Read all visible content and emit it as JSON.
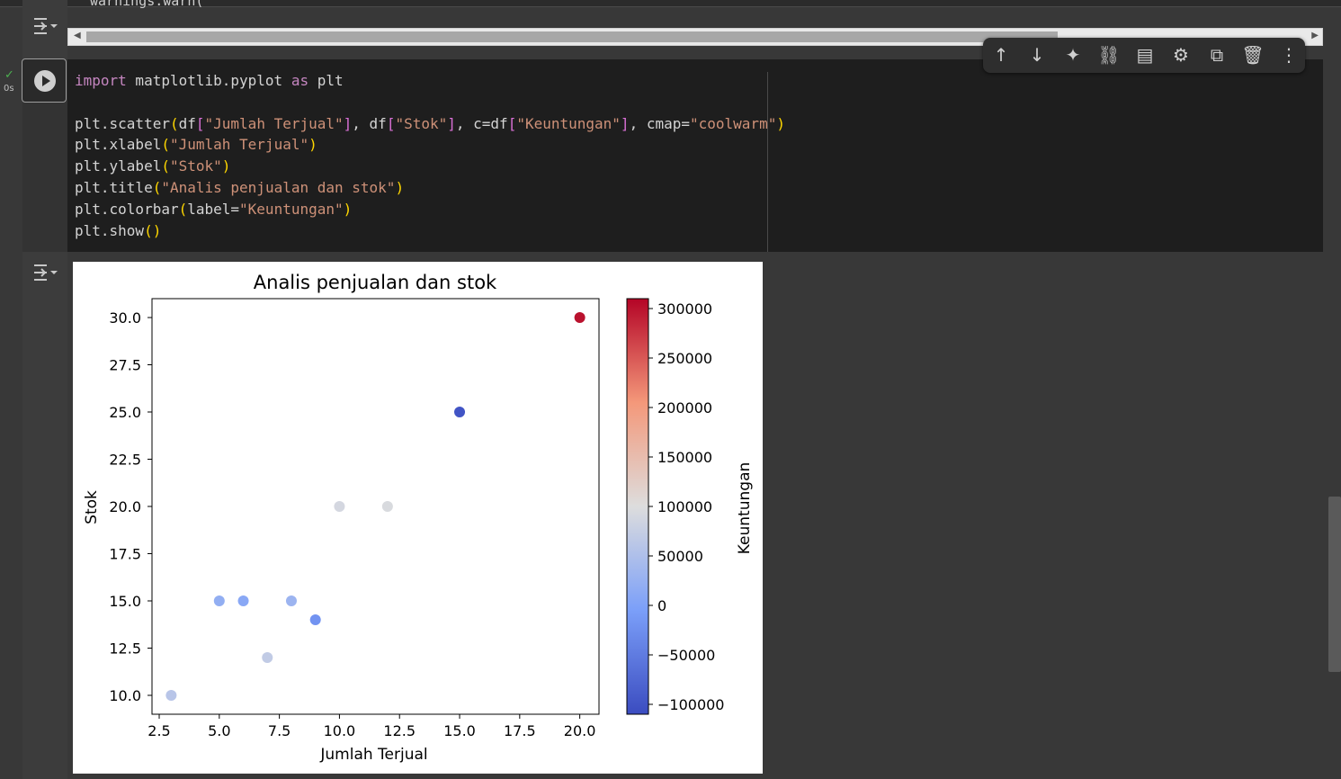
{
  "top": {
    "warning_text": "warnings.warn("
  },
  "cell": {
    "exec_time": "0s",
    "code_lines": [
      [
        {
          "t": "import",
          "c": "kw"
        },
        {
          "t": " matplotlib.pyplot "
        },
        {
          "t": "as",
          "c": "kw"
        },
        {
          "t": " plt"
        }
      ],
      [],
      [
        {
          "t": "plt.scatter"
        },
        {
          "t": "(",
          "c": "par"
        },
        {
          "t": "df"
        },
        {
          "t": "[",
          "c": "brk"
        },
        {
          "t": "\"Jumlah Terjual\"",
          "c": "str"
        },
        {
          "t": "]",
          "c": "brk"
        },
        {
          "t": ", df"
        },
        {
          "t": "[",
          "c": "brk"
        },
        {
          "t": "\"Stok\"",
          "c": "str"
        },
        {
          "t": "]",
          "c": "brk"
        },
        {
          "t": ", c=df"
        },
        {
          "t": "[",
          "c": "brk"
        },
        {
          "t": "\"Keuntungan\"",
          "c": "str"
        },
        {
          "t": "]",
          "c": "brk"
        },
        {
          "t": ", cmap="
        },
        {
          "t": "\"coolwarm\"",
          "c": "str"
        },
        {
          "t": ")",
          "c": "par"
        }
      ],
      [
        {
          "t": "plt.xlabel"
        },
        {
          "t": "(",
          "c": "par"
        },
        {
          "t": "\"Jumlah Terjual\"",
          "c": "str"
        },
        {
          "t": ")",
          "c": "par"
        }
      ],
      [
        {
          "t": "plt.ylabel"
        },
        {
          "t": "(",
          "c": "par"
        },
        {
          "t": "\"Stok\"",
          "c": "str"
        },
        {
          "t": ")",
          "c": "par"
        }
      ],
      [
        {
          "t": "plt.title"
        },
        {
          "t": "(",
          "c": "par"
        },
        {
          "t": "\"Analis penjualan dan stok\"",
          "c": "str"
        },
        {
          "t": ")",
          "c": "par"
        }
      ],
      [
        {
          "t": "plt.colorbar"
        },
        {
          "t": "(",
          "c": "par"
        },
        {
          "t": "label="
        },
        {
          "t": "\"Keuntungan\"",
          "c": "str"
        },
        {
          "t": ")",
          "c": "par"
        }
      ],
      [
        {
          "t": "plt.show"
        },
        {
          "t": "()",
          "c": "par"
        }
      ]
    ]
  },
  "toolbar": {
    "buttons": [
      {
        "name": "move-up-icon",
        "glyph": "↑"
      },
      {
        "name": "move-down-icon",
        "glyph": "↓"
      },
      {
        "name": "sparkle-icon",
        "glyph": "✦"
      },
      {
        "name": "link-icon",
        "glyph": "⛓"
      },
      {
        "name": "comment-icon",
        "glyph": "▤"
      },
      {
        "name": "gear-icon",
        "glyph": "⚙"
      },
      {
        "name": "mirror-cell-icon",
        "glyph": "⧉"
      },
      {
        "name": "trash-icon",
        "glyph": "🗑"
      },
      {
        "name": "more-vert-icon",
        "glyph": "⋮"
      }
    ]
  },
  "chart_data": {
    "type": "scatter",
    "title": "Analis penjualan dan stok",
    "xlabel": "Jumlah Terjual",
    "ylabel": "Stok",
    "colorbar_label": "Keuntungan",
    "cmap": "coolwarm",
    "xlim": [
      2.2,
      20.8
    ],
    "ylim": [
      9.0,
      31.0
    ],
    "xticks": [
      2.5,
      5.0,
      7.5,
      10.0,
      12.5,
      15.0,
      17.5,
      20.0
    ],
    "yticks": [
      10.0,
      12.5,
      15.0,
      17.5,
      20.0,
      22.5,
      25.0,
      27.5,
      30.0
    ],
    "colorbar_range": [
      -110000,
      310000
    ],
    "colorbar_ticks": [
      -100000,
      -50000,
      0,
      50000,
      100000,
      150000,
      200000,
      250000,
      300000
    ],
    "points": [
      {
        "x": 3,
        "y": 10,
        "c": 60000
      },
      {
        "x": 5,
        "y": 15,
        "c": 20000
      },
      {
        "x": 6,
        "y": 15,
        "c": 10000
      },
      {
        "x": 7,
        "y": 12,
        "c": 70000
      },
      {
        "x": 8,
        "y": 15,
        "c": 30000
      },
      {
        "x": 9,
        "y": 14,
        "c": -20000
      },
      {
        "x": 10,
        "y": 20,
        "c": 90000
      },
      {
        "x": 12,
        "y": 20,
        "c": 95000
      },
      {
        "x": 15,
        "y": 25,
        "c": -100000
      },
      {
        "x": 20,
        "y": 30,
        "c": 300000
      }
    ]
  }
}
